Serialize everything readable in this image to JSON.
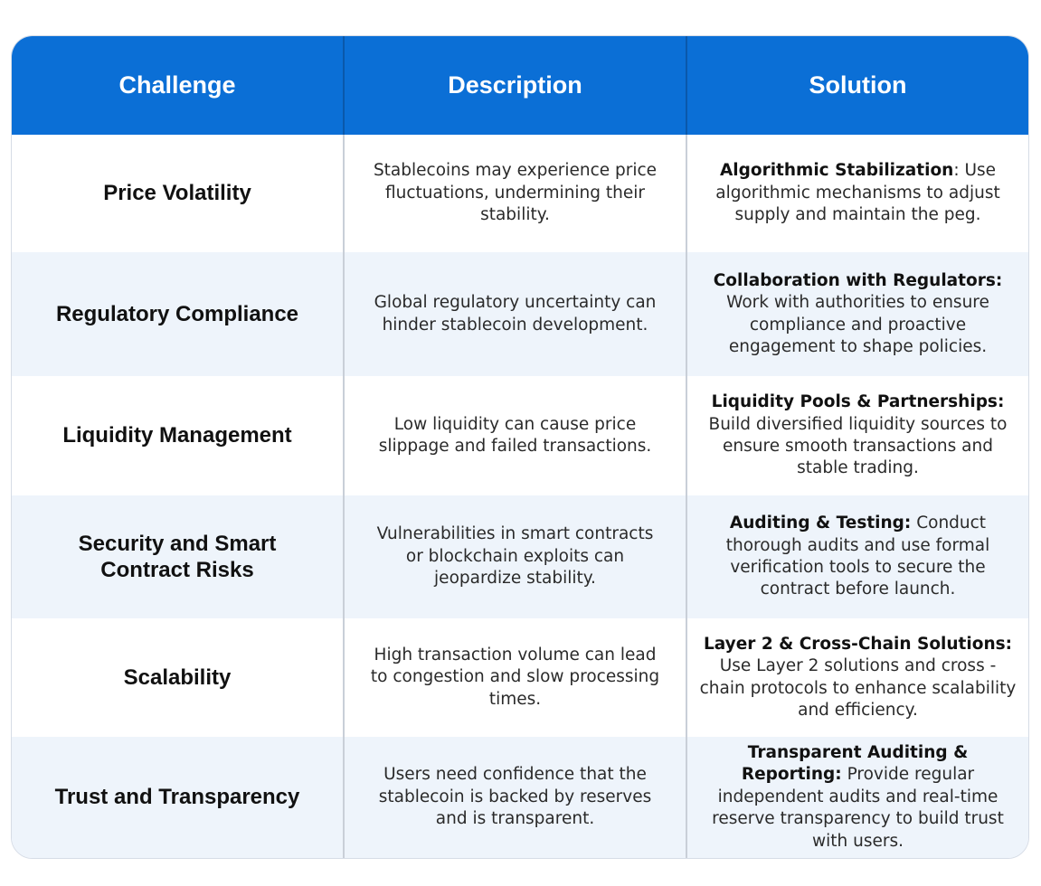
{
  "table": {
    "headers": [
      "Challenge",
      "Description",
      "Solution"
    ],
    "rows": [
      {
        "challenge": "Price Volatility",
        "description": "Stablecoins may experience price fluctuations, undermining their stability.",
        "solution_title": "Algorithmic Stabilization",
        "solution_text": ": Use algorithmic mechanisms to adjust supply and maintain the peg."
      },
      {
        "challenge": "Regulatory Compliance",
        "description": "Global regulatory uncertainty can hinder stablecoin development.",
        "solution_title": "Collaboration with Regulators:",
        "solution_text": " Work with authorities to ensure compliance and proactive engagement to shape policies."
      },
      {
        "challenge": "Liquidity Management",
        "description": "Low liquidity can cause price slippage and failed transactions.",
        "solution_title": "Liquidity Pools & Partnerships:",
        "solution_text": " Build diversified liquidity sources to ensure smooth transactions and stable trading."
      },
      {
        "challenge": "Security and Smart Contract Risks",
        "description": "Vulnerabilities in smart contracts or blockchain exploits can jeopardize stability.",
        "solution_title": "Auditing & Testing:",
        "solution_text": " Conduct thorough audits and use formal verification tools to secure the contract before launch."
      },
      {
        "challenge": "Scalability",
        "description": "High transaction volume can lead to congestion and slow processing times.",
        "solution_title": "Layer 2 & Cross-Chain Solutions:",
        "solution_text": " Use Layer 2 solutions and cross -chain protocols to enhance scalability and efficiency."
      },
      {
        "challenge": "Trust and Transparency",
        "description": "Users need confidence that the stablecoin is backed by reserves and is transparent.",
        "solution_title": "Transparent Auditing & Reporting:",
        "solution_text": " Provide regular independent audits and real-time reserve transparency to build trust with users."
      }
    ]
  },
  "colors": {
    "header_bg": "#0b6fd6",
    "header_text": "#ffffff",
    "row_alt_bg": "#eef4fb",
    "row_bg": "#ffffff"
  }
}
